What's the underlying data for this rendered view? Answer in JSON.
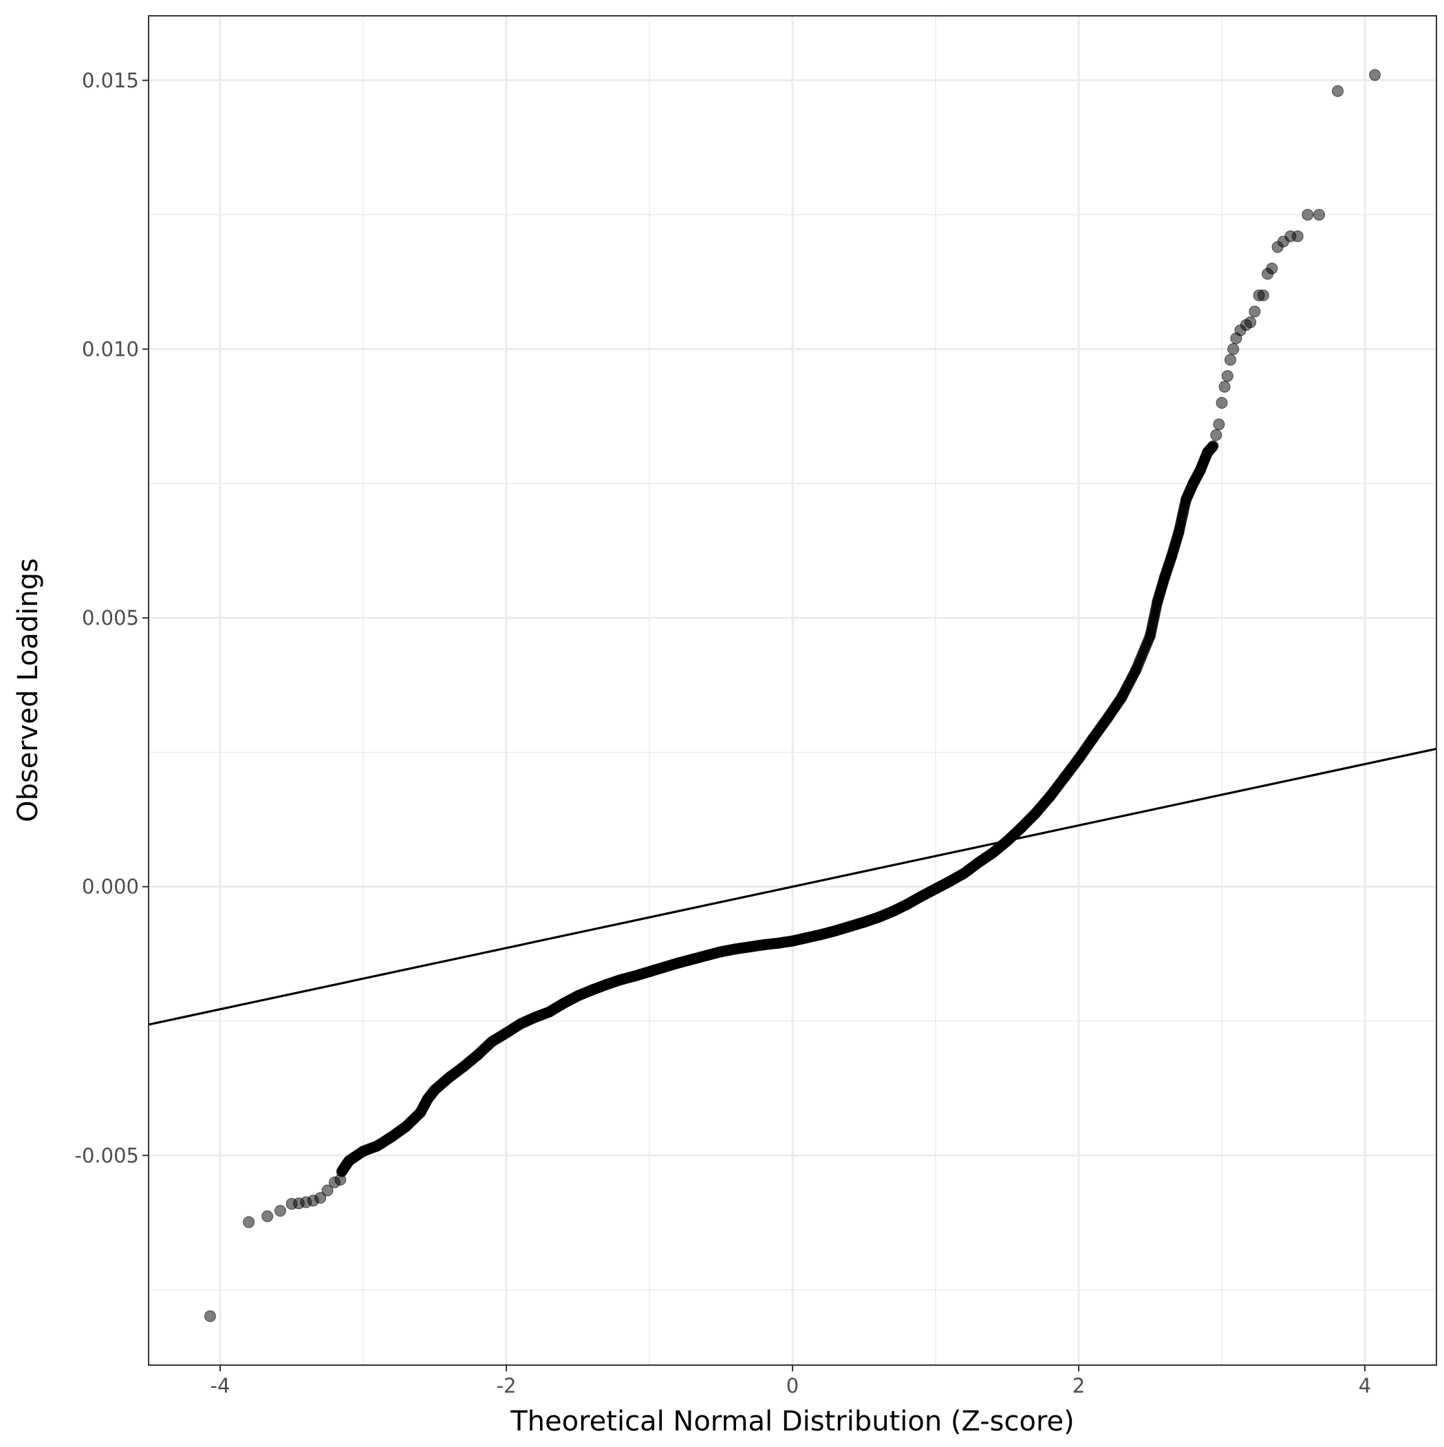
{
  "chart_data": {
    "type": "scatter",
    "title": "",
    "xlabel": "Theoretical Normal Distribution (Z-score)",
    "ylabel": "Observed Loadings",
    "xlim": [
      -4.5,
      4.5
    ],
    "ylim": [
      -0.0089,
      0.0162
    ],
    "x_ticks": [
      {
        "value": -4,
        "label": "-4"
      },
      {
        "value": -2,
        "label": "-2"
      },
      {
        "value": 0,
        "label": "0"
      },
      {
        "value": 2,
        "label": "2"
      },
      {
        "value": 4,
        "label": "4"
      }
    ],
    "y_ticks": [
      {
        "value": -0.005,
        "label": "-0.005"
      },
      {
        "value": 0.0,
        "label": "0.000"
      },
      {
        "value": 0.005,
        "label": "0.005"
      },
      {
        "value": 0.01,
        "label": "0.010"
      },
      {
        "value": 0.015,
        "label": "0.015"
      }
    ],
    "x_minor_grid": [
      -3,
      -1,
      1,
      3
    ],
    "y_minor_grid": [
      -0.0075,
      -0.0025,
      0.0025,
      0.0075,
      0.0125
    ],
    "grid": true,
    "legend": "none",
    "point_color": "#000000",
    "point_opacity": 0.5,
    "reference_line": {
      "slope": 0.00057,
      "intercept": 0.0
    },
    "curve_points": [
      [
        -3.15,
        -0.0053
      ],
      [
        -3.1,
        -0.0051
      ],
      [
        -3.0,
        -0.00492
      ],
      [
        -2.9,
        -0.00482
      ],
      [
        -2.8,
        -0.00465
      ],
      [
        -2.7,
        -0.00446
      ],
      [
        -2.6,
        -0.0042
      ],
      [
        -2.55,
        -0.00395
      ],
      [
        -2.5,
        -0.00378
      ],
      [
        -2.4,
        -0.00355
      ],
      [
        -2.3,
        -0.00335
      ],
      [
        -2.2,
        -0.00313
      ],
      [
        -2.1,
        -0.00288
      ],
      [
        -2.0,
        -0.00272
      ],
      [
        -1.9,
        -0.00255
      ],
      [
        -1.8,
        -0.00243
      ],
      [
        -1.7,
        -0.00233
      ],
      [
        -1.6,
        -0.00217
      ],
      [
        -1.5,
        -0.00203
      ],
      [
        -1.4,
        -0.00192
      ],
      [
        -1.3,
        -0.00182
      ],
      [
        -1.2,
        -0.00173
      ],
      [
        -1.1,
        -0.00166
      ],
      [
        -1.0,
        -0.00158
      ],
      [
        -0.9,
        -0.0015
      ],
      [
        -0.8,
        -0.00142
      ],
      [
        -0.7,
        -0.00135
      ],
      [
        -0.6,
        -0.00128
      ],
      [
        -0.5,
        -0.00121
      ],
      [
        -0.4,
        -0.00116
      ],
      [
        -0.3,
        -0.00112
      ],
      [
        -0.2,
        -0.00108
      ],
      [
        -0.1,
        -0.00105
      ],
      [
        0.0,
        -0.00101
      ],
      [
        0.1,
        -0.00095
      ],
      [
        0.2,
        -0.00089
      ],
      [
        0.3,
        -0.00082
      ],
      [
        0.4,
        -0.00074
      ],
      [
        0.5,
        -0.00066
      ],
      [
        0.6,
        -0.00057
      ],
      [
        0.7,
        -0.00046
      ],
      [
        0.8,
        -0.00033
      ],
      [
        0.9,
        -0.00018
      ],
      [
        1.0,
        -4e-05
      ],
      [
        1.1,
        0.0001
      ],
      [
        1.2,
        0.00025
      ],
      [
        1.3,
        0.00045
      ],
      [
        1.4,
        0.00063
      ],
      [
        1.5,
        0.00085
      ],
      [
        1.6,
        0.0011
      ],
      [
        1.7,
        0.00137
      ],
      [
        1.8,
        0.00168
      ],
      [
        1.9,
        0.00203
      ],
      [
        2.0,
        0.00238
      ],
      [
        2.1,
        0.00276
      ],
      [
        2.2,
        0.00313
      ],
      [
        2.3,
        0.00352
      ],
      [
        2.4,
        0.00403
      ],
      [
        2.5,
        0.00467
      ],
      [
        2.55,
        0.0053
      ],
      [
        2.6,
        0.00575
      ],
      [
        2.65,
        0.00615
      ],
      [
        2.7,
        0.0066
      ],
      [
        2.75,
        0.0072
      ],
      [
        2.8,
        0.0075
      ],
      [
        2.85,
        0.00775
      ],
      [
        2.9,
        0.00808
      ],
      [
        2.94,
        0.0082
      ]
    ],
    "tail_points": [
      [
        -4.07,
        -0.00799
      ],
      [
        -3.8,
        -0.00624
      ],
      [
        -3.67,
        -0.00613
      ],
      [
        -3.58,
        -0.00603
      ],
      [
        -3.5,
        -0.0059
      ],
      [
        -3.45,
        -0.00589
      ],
      [
        -3.4,
        -0.00587
      ],
      [
        -3.35,
        -0.00584
      ],
      [
        -3.3,
        -0.00579
      ],
      [
        -3.25,
        -0.00565
      ],
      [
        -3.2,
        -0.0055
      ],
      [
        -3.16,
        -0.00545
      ],
      [
        2.96,
        0.0084
      ],
      [
        2.98,
        0.0086
      ],
      [
        3.0,
        0.009
      ],
      [
        3.02,
        0.0093
      ],
      [
        3.04,
        0.0095
      ],
      [
        3.06,
        0.0098
      ],
      [
        3.08,
        0.01
      ],
      [
        3.1,
        0.0102
      ],
      [
        3.13,
        0.01035
      ],
      [
        3.17,
        0.01045
      ],
      [
        3.2,
        0.0105
      ],
      [
        3.23,
        0.0107
      ],
      [
        3.26,
        0.011
      ],
      [
        3.29,
        0.011
      ],
      [
        3.32,
        0.0114
      ],
      [
        3.35,
        0.0115
      ],
      [
        3.39,
        0.0119
      ],
      [
        3.43,
        0.012
      ],
      [
        3.48,
        0.0121
      ],
      [
        3.53,
        0.0121
      ],
      [
        3.6,
        0.0125
      ],
      [
        3.68,
        0.0125
      ],
      [
        3.81,
        0.0148
      ],
      [
        4.07,
        0.0151
      ]
    ]
  }
}
